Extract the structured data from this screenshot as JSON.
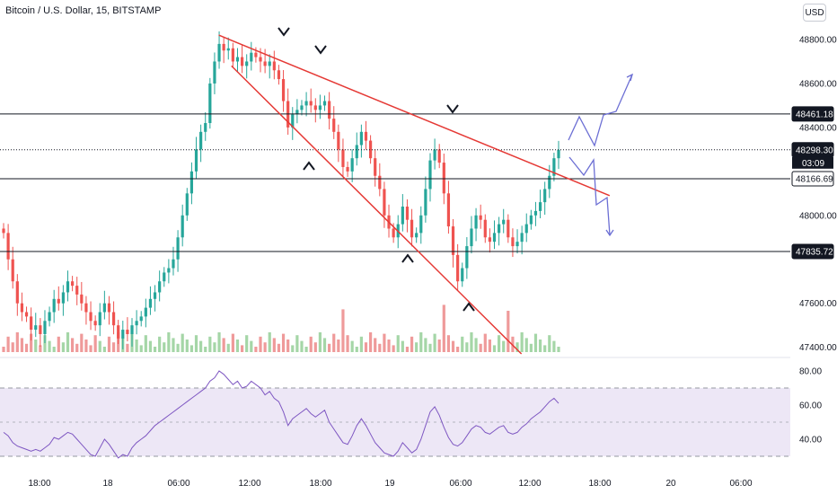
{
  "header": {
    "title": "Bitcoin / U.S. Dollar, 15, BITSTAMP",
    "currency": "USD"
  },
  "colors": {
    "up": "#26a69a",
    "down": "#ef5350",
    "trend": "#e53935",
    "rsi": "#7e57c2",
    "rsi_band": "#ede7f6"
  },
  "chart_data": [
    {
      "type": "candlestick",
      "title": "Bitcoin / U.S. Dollar, 15, BITSTAMP",
      "x_tick_labels": [
        "18:00",
        "18",
        "06:00",
        "12:00",
        "18:00",
        "19",
        "06:00",
        "12:00",
        "18:00",
        "20",
        "06:00"
      ],
      "y_tick_labels": [
        "48800.00",
        "48600.00",
        "48400.00",
        "48000.00",
        "47600.00",
        "47400.00"
      ],
      "ylim": [
        47300,
        48950
      ],
      "price_tags": [
        {
          "label": "48461.18",
          "value": 48461.18,
          "style": "dark"
        },
        {
          "label": "48298.30",
          "value": 48298.3,
          "style": "dark",
          "countdown": "03:09"
        },
        {
          "label": "48166.69",
          "value": 48166.69,
          "style": "white"
        },
        {
          "label": "47835.72",
          "value": 47835.72,
          "style": "dark"
        }
      ],
      "horizontal_levels": [
        48461.18,
        48166.69,
        47835.72
      ],
      "last_price": 48298.3,
      "trendlines": [
        {
          "from": [
            0.2768,
            48820
          ],
          "to": [
            0.7714,
            48090
          ]
        },
        {
          "from": [
            0.2929,
            48680
          ],
          "to": [
            0.6598,
            47370
          ]
        }
      ],
      "closes": [
        47920,
        47800,
        47700,
        47600,
        47560,
        47540,
        47480,
        47500,
        47460,
        47520,
        47560,
        47620,
        47600,
        47650,
        47700,
        47680,
        47640,
        47600,
        47560,
        47520,
        47500,
        47560,
        47600,
        47560,
        47500,
        47440,
        47480,
        47460,
        47500,
        47520,
        47540,
        47580,
        47620,
        47650,
        47700,
        47740,
        47760,
        47800,
        47900,
        48000,
        48100,
        48200,
        48300,
        48380,
        48420,
        48600,
        48700,
        48780,
        48750,
        48760,
        48700,
        48720,
        48680,
        48700,
        48740,
        48720,
        48700,
        48680,
        48700,
        48660,
        48620,
        48520,
        48400,
        48460,
        48480,
        48500,
        48520,
        48500,
        48480,
        48500,
        48520,
        48440,
        48380,
        48300,
        48220,
        48200,
        48260,
        48320,
        48380,
        48340,
        48260,
        48180,
        48120,
        48000,
        47940,
        47900,
        47960,
        48040,
        47980,
        47900,
        47920,
        48000,
        48120,
        48250,
        48300,
        48240,
        48100,
        47950,
        47820,
        47700,
        47760,
        47860,
        47940,
        48000,
        47980,
        47900,
        47880,
        47920,
        47960,
        47980,
        47900,
        47860,
        47880,
        47920,
        47960,
        48000,
        48020,
        48060,
        48120,
        48180,
        48260,
        48298
      ],
      "volume_peak_label": "",
      "rsi": {
        "y_tick_labels": [
          "80.00",
          "60.00",
          "40.00"
        ],
        "ylim": [
          27,
          83
        ],
        "band": [
          30,
          70
        ],
        "mid": 50,
        "values": [
          44,
          42,
          38,
          36,
          35,
          34,
          33,
          34,
          33,
          35,
          37,
          41,
          40,
          42,
          44,
          43,
          40,
          37,
          34,
          31,
          30,
          35,
          40,
          37,
          33,
          29,
          31,
          30,
          35,
          38,
          40,
          42,
          45,
          48,
          50,
          52,
          54,
          56,
          58,
          60,
          62,
          64,
          66,
          68,
          70,
          74,
          76,
          80,
          78,
          75,
          72,
          74,
          70,
          71,
          74,
          72,
          70,
          66,
          68,
          64,
          62,
          56,
          48,
          52,
          54,
          56,
          58,
          55,
          53,
          55,
          57,
          50,
          46,
          42,
          38,
          37,
          42,
          48,
          52,
          48,
          43,
          38,
          35,
          32,
          31,
          30,
          33,
          38,
          35,
          32,
          34,
          40,
          48,
          56,
          59,
          54,
          47,
          41,
          37,
          36,
          38,
          42,
          46,
          48,
          47,
          44,
          43,
          45,
          47,
          48,
          44,
          43,
          44,
          47,
          49,
          52,
          54,
          56,
          59,
          62,
          64,
          61
        ]
      }
    }
  ]
}
